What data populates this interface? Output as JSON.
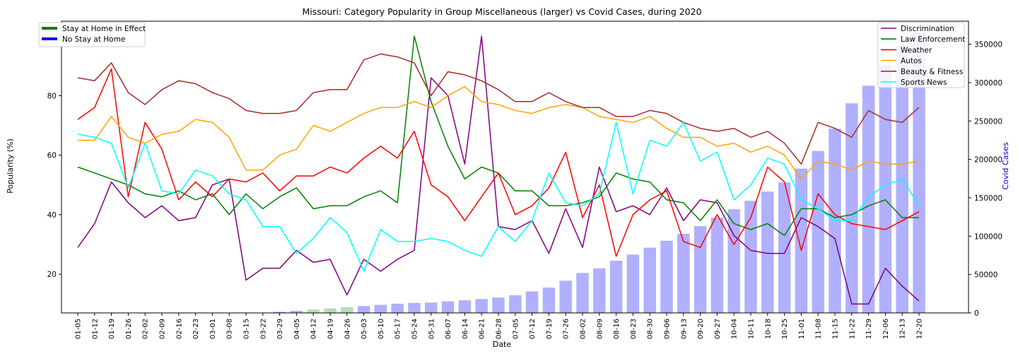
{
  "chart_data": {
    "type": "line",
    "title": "Missouri: Category Popularity in Group Miscellaneous (larger) vs Covid Cases, during 2020",
    "xlabel": "Date",
    "ylabel": "Popularity (%)",
    "y2label": "Covid Cases",
    "ylim": [
      7,
      105
    ],
    "y2lim": [
      0,
      380000
    ],
    "yticks": [
      20,
      40,
      60,
      80,
      100
    ],
    "y2ticks": [
      0,
      50000,
      100000,
      150000,
      200000,
      250000,
      300000,
      350000
    ],
    "grid": false,
    "categories": [
      "01-05",
      "01-12",
      "01-19",
      "01-26",
      "02-02",
      "02-09",
      "02-16",
      "02-23",
      "03-01",
      "03-08",
      "03-15",
      "03-22",
      "03-29",
      "04-05",
      "04-12",
      "04-19",
      "04-26",
      "05-03",
      "05-10",
      "05-17",
      "05-24",
      "05-31",
      "06-07",
      "06-14",
      "06-21",
      "06-28",
      "07-05",
      "07-12",
      "07-19",
      "07-26",
      "08-02",
      "08-09",
      "08-16",
      "08-23",
      "08-30",
      "09-06",
      "09-13",
      "09-20",
      "09-27",
      "10-04",
      "10-11",
      "10-18",
      "10-25",
      "11-01",
      "11-08",
      "11-15",
      "11-22",
      "11-29",
      "12-06",
      "12-13",
      "12-20"
    ],
    "covid_bars": {
      "name": "Covid Cases",
      "values": [
        0,
        0,
        0,
        0,
        0,
        0,
        0,
        0,
        0,
        0,
        50,
        400,
        1500,
        2800,
        4500,
        6000,
        7500,
        9000,
        10500,
        12000,
        13000,
        13500,
        15000,
        16500,
        18000,
        20000,
        23000,
        28000,
        33000,
        42000,
        52000,
        58000,
        68000,
        76000,
        85000,
        94000,
        103000,
        113000,
        124000,
        135000,
        146000,
        158000,
        170000,
        188000,
        211000,
        240000,
        273000,
        296000,
        323000,
        348000,
        365000
      ],
      "stay_at_home_weeks": [
        "04-12",
        "04-19",
        "04-26"
      ],
      "color_no_stay": "#b0b0ff",
      "color_stay": "#b3deb3"
    },
    "series": [
      {
        "name": "Discrimination",
        "color": "#800080",
        "values": [
          29,
          37,
          51,
          44,
          39,
          43,
          38,
          39,
          50,
          52,
          18,
          22,
          22,
          28,
          24,
          25,
          13,
          25,
          21,
          25,
          28,
          86,
          80,
          57,
          100,
          36,
          35,
          38,
          27,
          42,
          29,
          56,
          41,
          43,
          40,
          49,
          38,
          45,
          44,
          33,
          28,
          27,
          27,
          39,
          36,
          32,
          10,
          10,
          22,
          16,
          11
        ]
      },
      {
        "name": "Law Enforcement",
        "color": "#008000",
        "values": [
          56,
          54,
          52,
          50,
          47,
          46,
          48,
          45,
          47,
          40,
          47,
          42,
          46,
          49,
          42,
          43,
          43,
          46,
          48,
          44,
          100,
          78,
          63,
          52,
          56,
          54,
          48,
          48,
          43,
          43,
          44,
          46,
          54,
          52,
          51,
          45,
          44,
          38,
          45,
          37,
          35,
          37,
          33,
          42,
          42,
          39,
          40,
          43,
          45,
          39,
          39
        ]
      },
      {
        "name": "Weather",
        "color": "#ff0000",
        "values": [
          72,
          76,
          89,
          46,
          71,
          62,
          45,
          51,
          46,
          52,
          51,
          54,
          48,
          53,
          53,
          56,
          54,
          59,
          63,
          59,
          68,
          50,
          46,
          38,
          46,
          54,
          40,
          43,
          49,
          61,
          39,
          50,
          26,
          40,
          45,
          48,
          31,
          29,
          40,
          30,
          39,
          56,
          51,
          28,
          47,
          40,
          37,
          36,
          35,
          38,
          41
        ]
      },
      {
        "name": "Autos",
        "color": "#ffa500",
        "values": [
          65,
          65,
          73,
          66,
          64,
          67,
          68,
          72,
          71,
          66,
          55,
          55,
          60,
          62,
          70,
          68,
          71,
          74,
          76,
          76,
          78,
          76,
          80,
          83,
          78,
          77,
          75,
          74,
          76,
          77,
          76,
          73,
          72,
          71,
          73,
          69,
          66,
          66,
          63,
          64,
          61,
          63,
          60,
          52,
          58,
          57,
          55,
          58,
          57,
          57,
          58
        ]
      },
      {
        "name": "Beauty & Fitness",
        "color": "#a52a2a",
        "values": [
          86,
          85,
          91,
          81,
          77,
          82,
          85,
          84,
          81,
          79,
          75,
          74,
          74,
          75,
          81,
          82,
          82,
          92,
          94,
          93,
          91,
          80,
          88,
          87,
          85,
          82,
          78,
          78,
          81,
          78,
          76,
          76,
          73,
          73,
          75,
          74,
          71,
          69,
          68,
          69,
          66,
          68,
          64,
          57,
          71,
          69,
          66,
          75,
          72,
          71,
          76
        ]
      },
      {
        "name": "Sports News",
        "color": "#00ffff",
        "values": [
          67,
          66,
          64,
          49,
          64,
          48,
          47,
          55,
          53,
          47,
          45,
          36,
          36,
          27,
          32,
          39,
          34,
          21,
          35,
          31,
          31,
          32,
          31,
          28,
          26,
          36,
          31,
          38,
          54,
          44,
          43,
          47,
          71,
          47,
          65,
          63,
          71,
          58,
          61,
          45,
          50,
          59,
          57,
          45,
          42,
          38,
          38,
          46,
          50,
          52,
          43
        ]
      }
    ],
    "legend_main": {
      "position": "top-right",
      "entries": [
        "Discrimination",
        "Law Enforcement",
        "Weather",
        "Autos",
        "Beauty & Fitness",
        "Sports News"
      ]
    },
    "legend_stay": {
      "position": "top-left",
      "entries": [
        {
          "label": "Stay at Home in Effect",
          "color": "#008000"
        },
        {
          "label": "No Stay at Home",
          "color": "#0000ff"
        }
      ]
    }
  }
}
